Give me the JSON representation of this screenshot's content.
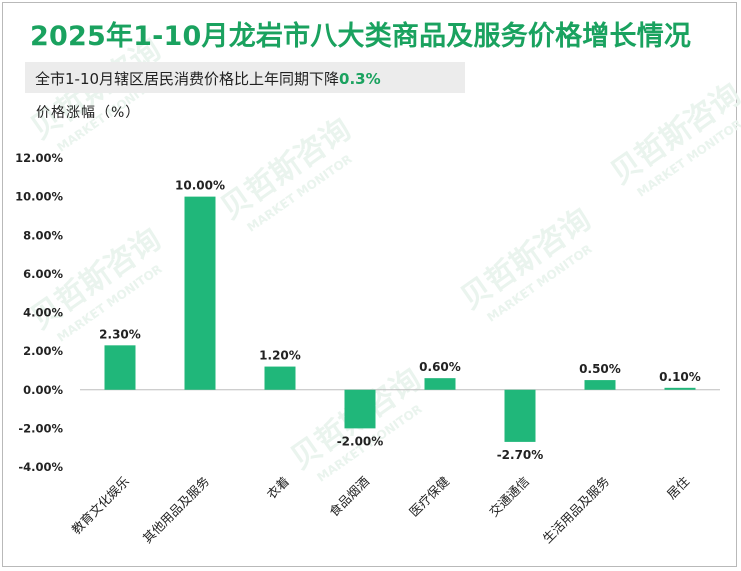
{
  "title": "2025年1-10月龙岩市八大类商品及服务价格增长情况",
  "subtitle": {
    "prefix": "全市1-10月辖区居民消费价格比上年同期下降",
    "highlight": "0.3%"
  },
  "y_axis_caption": "价格涨幅（%）",
  "watermark": {
    "brand": "贝哲斯咨询",
    "brand_en": "MARKET MONITOR"
  },
  "colors": {
    "accent": "#1aa25f",
    "bar": "#20b77a",
    "subtitle_bg": "#ececec"
  },
  "chart_data": {
    "type": "bar",
    "categories": [
      "教育文化娱乐",
      "其他用品及服务",
      "衣着",
      "食品烟酒",
      "医疗保健",
      "交通通信",
      "生活用品及服务",
      "居住"
    ],
    "values": [
      2.3,
      10.0,
      1.2,
      -2.0,
      0.6,
      -2.7,
      0.5,
      0.1
    ],
    "data_labels": [
      "2.30%",
      "10.00%",
      "1.20%",
      "-2.00%",
      "0.60%",
      "-2.70%",
      "0.50%",
      "0.10%"
    ],
    "ylim": [
      -4,
      12
    ],
    "yticks": [
      -4,
      -2,
      0,
      2,
      4,
      6,
      8,
      10,
      12
    ],
    "ytick_labels": [
      "-4.00%",
      "-2.00%",
      "0.00%",
      "2.00%",
      "4.00%",
      "6.00%",
      "8.00%",
      "10.00%",
      "12.00%"
    ],
    "grid": false,
    "legend": "none"
  }
}
